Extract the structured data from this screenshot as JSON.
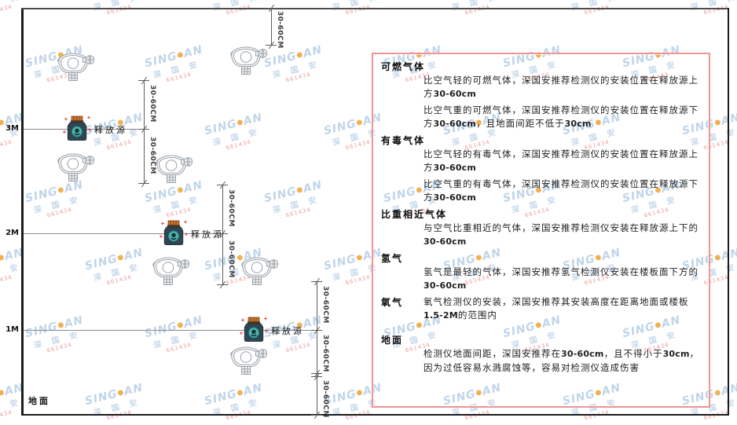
{
  "watermark": {
    "brand_left": "SING",
    "brand_dot": "●",
    "brand_right": "AN",
    "chinese": "深 国 安",
    "code": "661434"
  },
  "colors": {
    "panel_border": "#f19494",
    "watermark_blue": "#8cb2d7",
    "watermark_orange": "#f0a333",
    "watermark_red": "#e05c5c",
    "source_body": "#2e4653",
    "source_cap": "#c8742c",
    "source_circle": "#4ab5aa",
    "detector_line": "#99a1a9"
  },
  "diagram": {
    "axis_labels": [
      "3M",
      "2M",
      "1M"
    ],
    "ground_label": "地面",
    "release_source_label": "释放源",
    "dim_label": "30-60CM"
  },
  "panel": {
    "sections": [
      {
        "heading": "可燃气体",
        "inline": false,
        "paras": [
          [
            {
              "t": "比空气轻的可燃气体，深国安推荐检测仪的安装位置在释放源上方",
              "b": false
            },
            {
              "t": "30-60cm",
              "b": true
            }
          ],
          [
            {
              "t": "比空气重的可燃气体，深国安推荐检测仪的安装位置在释放源下方",
              "b": false
            },
            {
              "t": "30-60cm",
              "b": true
            },
            {
              "t": "，且地面间距不低于",
              "b": false
            },
            {
              "t": "30cm",
              "b": true
            }
          ]
        ]
      },
      {
        "heading": "有毒气体",
        "inline": false,
        "paras": [
          [
            {
              "t": "比空气轻的有毒气体，深国安推荐检测仪的安装位置在释放源上方",
              "b": false
            },
            {
              "t": "30-60cm",
              "b": true
            }
          ],
          [
            {
              "t": "比空气重的有毒气体，深国安推荐检测仪的安装位置在释放源下方",
              "b": false
            },
            {
              "t": "30-60cm",
              "b": true
            }
          ]
        ]
      },
      {
        "heading": "比重相近气体",
        "inline": false,
        "paras": [
          [
            {
              "t": "与空气比重相近的气体，深国安推荐检测仪安装在释放源上下的",
              "b": false
            },
            {
              "t": "30-60cm",
              "b": true
            }
          ]
        ]
      },
      {
        "heading": "氢气",
        "inline": false,
        "paras": [
          [
            {
              "t": "氢气是最轻的气体，深国安推荐氢气检测仪安装在楼板面下方的",
              "b": false
            },
            {
              "t": "30-60cm",
              "b": true
            }
          ]
        ]
      },
      {
        "heading": "氧气",
        "inline": true,
        "paras": [
          [
            {
              "t": "氧气检测仪的安装，深国安推荐其安装高度在距离地面或楼板",
              "b": false
            },
            {
              "t": "1.5-2M",
              "b": true
            },
            {
              "t": "的范围内",
              "b": false
            }
          ]
        ]
      },
      {
        "heading": "地面",
        "inline": false,
        "spaced": true,
        "paras": [
          [
            {
              "t": "检测仪地面间距，深国安推荐在",
              "b": false
            },
            {
              "t": "30-60cm",
              "b": true
            },
            {
              "t": "，且不得小于",
              "b": false
            },
            {
              "t": "30cm",
              "b": true
            },
            {
              "t": "，因为过低容易水溅腐蚀等，容易对检测仪造成伤害",
              "b": false
            }
          ]
        ]
      }
    ]
  }
}
